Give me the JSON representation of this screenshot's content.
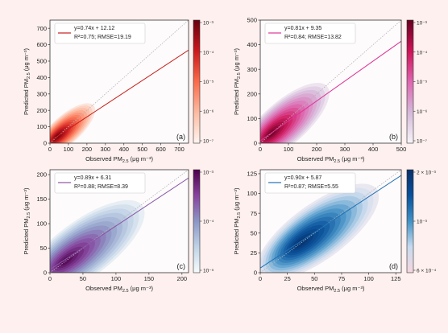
{
  "chart_data": [
    {
      "type": "scatter",
      "panel_label": "(a)",
      "xlabel": "Observed PM2.5 (μg m⁻³)",
      "ylabel": "Predicted PM2.5 (μg m⁻³)",
      "xlim": [
        0,
        750
      ],
      "ylim": [
        0,
        750
      ],
      "xticks": [
        "0",
        "100",
        "200",
        "300",
        "400",
        "500",
        "600",
        "700"
      ],
      "yticks": [
        "0",
        "100",
        "200",
        "300",
        "400",
        "500",
        "600",
        "700"
      ],
      "legend_equation": "y=0.74x + 12.12",
      "legend_stats": "R²=0.75; RMSE=19.19",
      "legend_position": "top-left",
      "fit": {
        "slope": 0.74,
        "intercept": 12.12
      },
      "r2": 0.75,
      "rmse": 19.19,
      "colorbar_ticks": [
        "10⁻³",
        "10⁻⁴",
        "10⁻⁵",
        "10⁻⁶",
        "10⁻⁷"
      ],
      "colormap": [
        "#fff5f0",
        "#fcbba1",
        "#fb6a4a",
        "#cb181d",
        "#67000d"
      ],
      "line_color": "#c81d1d",
      "density_peak": [
        40,
        40
      ],
      "density_extent": 180
    },
    {
      "type": "scatter",
      "panel_label": "(b)",
      "xlabel": "Observed PM2.5 (μg m⁻³)",
      "ylabel": "Predicted PM2.5 (μg m⁻³)",
      "xlim": [
        0,
        500
      ],
      "ylim": [
        0,
        500
      ],
      "xticks": [
        "0",
        "100",
        "200",
        "300",
        "400",
        "500"
      ],
      "yticks": [
        "0",
        "100",
        "200",
        "300",
        "400",
        "500"
      ],
      "legend_equation": "y=0.81x + 9.35",
      "legend_stats": "R²=0.84; RMSE=13.82",
      "legend_position": "top-left",
      "fit": {
        "slope": 0.81,
        "intercept": 9.35
      },
      "r2": 0.84,
      "rmse": 13.82,
      "colorbar_ticks": [
        "10⁻³",
        "10⁻⁴",
        "10⁻⁵",
        "10⁻⁶",
        "10⁻⁷"
      ],
      "colormap": [
        "#f7f4f9",
        "#d4b9da",
        "#df65b0",
        "#ce1256",
        "#67001f"
      ],
      "line_color": "#dd3497",
      "density_peak": [
        40,
        40
      ],
      "density_extent": 180
    },
    {
      "type": "scatter",
      "panel_label": "(c)",
      "xlabel": "Observed PM2.5 (μg m⁻³)",
      "ylabel": "Predicted PM2.5 (μg m⁻³)",
      "xlim": [
        0,
        210
      ],
      "ylim": [
        0,
        210
      ],
      "xticks": [
        "0",
        "50",
        "100",
        "150",
        "200"
      ],
      "yticks": [
        "0",
        "50",
        "100",
        "150",
        "200"
      ],
      "legend_equation": "y=0.89x + 6.31",
      "legend_stats": "R²=0.88; RMSE=8.39",
      "legend_position": "top-left",
      "fit": {
        "slope": 0.89,
        "intercept": 6.31
      },
      "r2": 0.88,
      "rmse": 8.39,
      "colorbar_ticks": [
        "10⁻³",
        "10⁻⁴",
        "10⁻⁵"
      ],
      "colormap": [
        "#f7fcfd",
        "#bfd3e6",
        "#8c96c6",
        "#88419d",
        "#4d004b"
      ],
      "line_color": "#8856a7",
      "density_peak": [
        25,
        25
      ],
      "density_extent": 100
    },
    {
      "type": "scatter",
      "panel_label": "(d)",
      "xlabel": "Observed PM2.5 (μg m⁻³)",
      "ylabel": "Predicted PM2.5 (μg m⁻³)",
      "xlim": [
        0,
        130
      ],
      "ylim": [
        0,
        130
      ],
      "xticks": [
        "0",
        "25",
        "50",
        "75",
        "100",
        "125"
      ],
      "yticks": [
        "0",
        "25",
        "50",
        "75",
        "100",
        "125"
      ],
      "legend_equation": "y=0.90x + 5.87",
      "legend_stats": "R²=0.87; RMSE=5.55",
      "legend_position": "top-left",
      "fit": {
        "slope": 0.9,
        "intercept": 5.87
      },
      "r2": 0.87,
      "rmse": 5.55,
      "colorbar_ticks": [
        "2 × 10⁻³",
        "10⁻³",
        "6 × 10⁻⁴"
      ],
      "colormap": [
        "#f5d6df",
        "#c6dbef",
        "#4292c6",
        "#08519c",
        "#08306b"
      ],
      "line_color": "#2171b5",
      "density_peak": [
        38,
        38
      ],
      "density_extent": 60
    }
  ]
}
